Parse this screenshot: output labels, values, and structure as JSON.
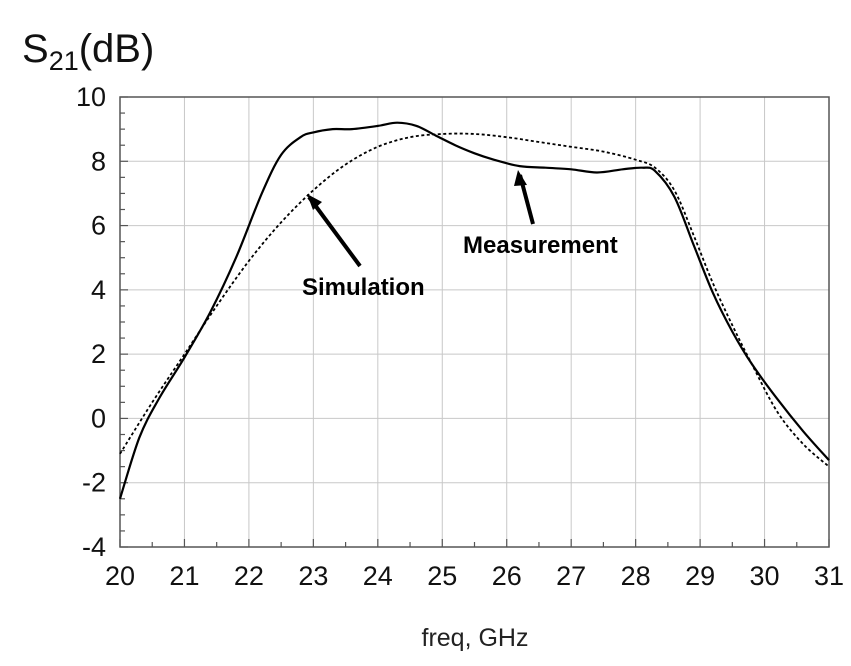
{
  "chart_data": {
    "type": "line",
    "title": "",
    "ylabel": {
      "prefix": "S",
      "sub": "21",
      "suffix": "(dB)"
    },
    "xlabel": "freq, GHz",
    "xlim": [
      20,
      31
    ],
    "ylim": [
      -4,
      10
    ],
    "xticks": [
      20,
      21,
      22,
      23,
      24,
      25,
      26,
      27,
      28,
      29,
      30,
      31
    ],
    "yticks": [
      -4,
      -2,
      0,
      2,
      4,
      6,
      8,
      10
    ],
    "grid": true,
    "series": [
      {
        "name": "Measurement",
        "style": "solid",
        "color": "#000000",
        "x": [
          20,
          20.3,
          20.6,
          21.0,
          21.4,
          21.8,
          22.2,
          22.5,
          22.8,
          23.0,
          23.3,
          23.6,
          24.0,
          24.3,
          24.6,
          24.9,
          25.2,
          25.5,
          25.8,
          26.2,
          26.6,
          27.0,
          27.4,
          27.8,
          28.1,
          28.3,
          28.6,
          28.9,
          29.2,
          29.5,
          29.8,
          30.2,
          30.6,
          31.0
        ],
        "y": [
          -2.5,
          -0.6,
          0.6,
          1.9,
          3.3,
          5.0,
          7.0,
          8.2,
          8.75,
          8.9,
          9.0,
          9.0,
          9.1,
          9.2,
          9.1,
          8.8,
          8.5,
          8.25,
          8.05,
          7.85,
          7.8,
          7.75,
          7.65,
          7.75,
          7.8,
          7.7,
          6.9,
          5.4,
          3.9,
          2.7,
          1.7,
          0.6,
          -0.4,
          -1.3
        ]
      },
      {
        "name": "Simulation",
        "style": "dotted",
        "color": "#000000",
        "x": [
          20,
          20.5,
          21.0,
          21.5,
          22.0,
          22.5,
          23.0,
          23.5,
          24.0,
          24.5,
          25.0,
          25.5,
          26.0,
          26.5,
          27.0,
          27.5,
          28.0,
          28.3,
          28.6,
          28.9,
          29.2,
          29.5,
          29.8,
          30.2,
          30.6,
          31.0
        ],
        "y": [
          -1.1,
          0.5,
          2.0,
          3.5,
          4.9,
          6.1,
          7.1,
          7.9,
          8.45,
          8.75,
          8.85,
          8.85,
          8.75,
          8.6,
          8.45,
          8.3,
          8.05,
          7.8,
          7.1,
          5.7,
          4.2,
          2.9,
          1.7,
          0.2,
          -0.8,
          -1.5
        ]
      }
    ],
    "annotations": [
      {
        "text": "Simulation",
        "arrow_to": [
          22.95,
          7.0
        ]
      },
      {
        "text": "Measurement",
        "arrow_to": [
          25.8,
          7.7
        ]
      }
    ]
  }
}
